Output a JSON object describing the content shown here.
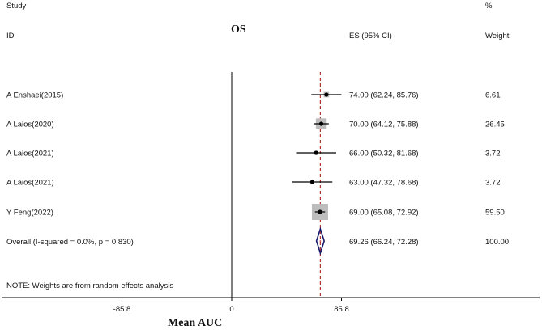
{
  "chart_data": {
    "type": "forest",
    "title": "OS",
    "xlabel": "Mean AUC",
    "x_ticks": [
      -85.8,
      0,
      85.8
    ],
    "x_tick_labels": [
      "-85.8",
      "0",
      "85.8"
    ],
    "xlim": [
      -185,
      250
    ],
    "null_line": 0,
    "pooled_line": 69.26,
    "header": {
      "study_top": "Study",
      "study_bottom": "ID",
      "es": "ES (95% CI)",
      "weight_top": "%",
      "weight_bottom": "Weight"
    },
    "studies": [
      {
        "id": "A Enshaei(2015)",
        "es": 74.0,
        "lo": 62.24,
        "hi": 85.76,
        "es_text": "74.00 (62.24, 85.76)",
        "weight": 6.61,
        "weight_text": "6.61"
      },
      {
        "id": "A Laios(2020)",
        "es": 70.0,
        "lo": 64.12,
        "hi": 75.88,
        "es_text": "70.00 (64.12, 75.88)",
        "weight": 26.45,
        "weight_text": "26.45"
      },
      {
        "id": "A Laios(2021)",
        "es": 66.0,
        "lo": 50.32,
        "hi": 81.68,
        "es_text": "66.00 (50.32, 81.68)",
        "weight": 3.72,
        "weight_text": "3.72"
      },
      {
        "id": "A Laios(2021)",
        "es": 63.0,
        "lo": 47.32,
        "hi": 78.68,
        "es_text": "63.00 (47.32, 78.68)",
        "weight": 3.72,
        "weight_text": "3.72"
      },
      {
        "id": "Y Feng(2022)",
        "es": 69.0,
        "lo": 65.08,
        "hi": 72.92,
        "es_text": "69.00 (65.08, 72.92)",
        "weight": 59.5,
        "weight_text": "59.50"
      }
    ],
    "overall": {
      "label": "Overall  (I-squared = 0.0%, p = 0.830)",
      "es": 69.26,
      "lo": 66.24,
      "hi": 72.28,
      "es_text": "69.26 (66.24, 72.28)",
      "weight_text": "100.00"
    },
    "note": "NOTE: Weights are from random effects analysis",
    "colors": {
      "weight_box": "#bdbdbd",
      "diamond": "#1a1a6e",
      "pooled_line": "#b5322c",
      "line": "#000000"
    }
  }
}
